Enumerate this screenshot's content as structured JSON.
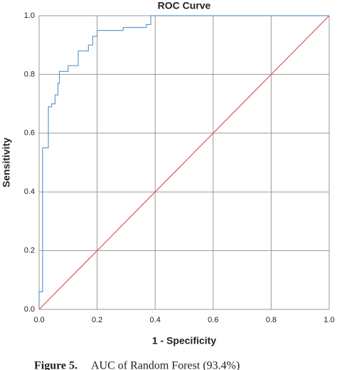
{
  "chart_data": {
    "type": "line",
    "title": "ROC Curve",
    "xlabel": "1 - Specificity",
    "ylabel": "Sensitivity",
    "caption_label": "Figure 5.",
    "caption": "AUC of Random Forest (93.4%)",
    "xlim": [
      0,
      1
    ],
    "ylim": [
      0,
      1
    ],
    "xticks": [
      {
        "value": 0,
        "label": "0.0"
      },
      0.2,
      0.4,
      0.6,
      0.8,
      {
        "value": 1,
        "label": "1.0"
      }
    ],
    "yticks": [
      {
        "value": 0,
        "label": "0.0"
      },
      0.2,
      0.4,
      0.6,
      0.8,
      {
        "value": 1,
        "label": "1.0"
      }
    ],
    "grid": true,
    "series": [
      {
        "color": "#5b9bd5",
        "x": [
          0,
          0,
          0.012,
          0.012,
          0.032,
          0.032,
          0.043,
          0.043,
          0.055,
          0.055,
          0.065,
          0.065,
          0.07,
          0.07,
          0.1,
          0.1,
          0.135,
          0.135,
          0.17,
          0.17,
          0.185,
          0.185,
          0.2,
          0.2,
          0.29,
          0.29,
          0.37,
          0.37,
          0.385,
          0.385,
          1
        ],
        "values": [
          0,
          0.06,
          0.06,
          0.55,
          0.55,
          0.69,
          0.69,
          0.7,
          0.7,
          0.73,
          0.73,
          0.77,
          0.77,
          0.81,
          0.81,
          0.83,
          0.83,
          0.88,
          0.88,
          0.9,
          0.9,
          0.93,
          0.93,
          0.95,
          0.95,
          0.96,
          0.96,
          0.97,
          0.97,
          1,
          1
        ]
      },
      {
        "color": "#d9534f",
        "x": [
          0,
          1
        ],
        "values": [
          0,
          1
        ]
      }
    ]
  }
}
